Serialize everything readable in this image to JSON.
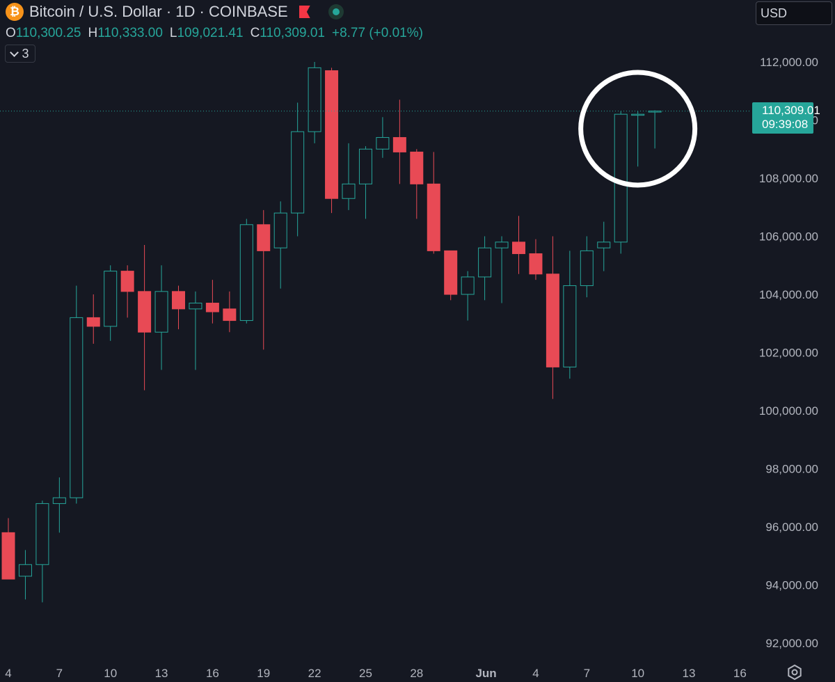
{
  "header": {
    "logo_letter": "₿",
    "title": "Bitcoin / U.S. Dollar · 1D · COINBASE",
    "flag_icon": "flag-icon",
    "status_icon": "market-open-dot-icon"
  },
  "ohlc": {
    "o_label": "O",
    "o_value": "110,300.25",
    "h_label": "H",
    "h_value": "110,333.00",
    "l_label": "L",
    "l_value": "109,021.41",
    "c_label": "C",
    "c_value": "110,309.01",
    "change": "+8.77 (+0.01%)"
  },
  "indicators_toggle": {
    "icon": "chevron-down-icon",
    "count": "3"
  },
  "currency": {
    "label": "USD"
  },
  "price_tag": {
    "price": "110,309.01",
    "countdown": "09:39:08"
  },
  "colors": {
    "background": "#151822",
    "up": "#26a69a",
    "down": "#e84a55",
    "text": "#d1d4dc",
    "axis_text": "#b2b5be"
  },
  "chart_data": {
    "type": "candlestick",
    "ylim": [
      91000,
      113000
    ],
    "yticks": [
      {
        "value": 92000,
        "label": "92,000.00"
      },
      {
        "value": 94000,
        "label": "94,000.00"
      },
      {
        "value": 96000,
        "label": "96,000.00"
      },
      {
        "value": 98000,
        "label": "98,000.00"
      },
      {
        "value": 100000,
        "label": "100,000.00"
      },
      {
        "value": 102000,
        "label": "102,000.00"
      },
      {
        "value": 104000,
        "label": "104,000.00"
      },
      {
        "value": 106000,
        "label": "106,000.00"
      },
      {
        "value": 108000,
        "label": "108,000.00"
      },
      {
        "value": 110000,
        "label": "110,000.00"
      },
      {
        "value": 112000,
        "label": "112,000.00"
      }
    ],
    "xticks": [
      {
        "index": 0,
        "label": "4"
      },
      {
        "index": 3,
        "label": "7"
      },
      {
        "index": 6,
        "label": "10"
      },
      {
        "index": 9,
        "label": "13"
      },
      {
        "index": 12,
        "label": "16"
      },
      {
        "index": 15,
        "label": "19"
      },
      {
        "index": 18,
        "label": "22"
      },
      {
        "index": 21,
        "label": "25"
      },
      {
        "index": 24,
        "label": "28"
      },
      {
        "index": 28,
        "label": "Jun"
      },
      {
        "index": 31,
        "label": "4"
      },
      {
        "index": 34,
        "label": "7"
      },
      {
        "index": 37,
        "label": "10"
      },
      {
        "index": 40,
        "label": "13"
      },
      {
        "index": 43,
        "label": "16"
      }
    ],
    "candles": [
      {
        "o": 95800,
        "h": 96300,
        "l": 94200,
        "c": 94200
      },
      {
        "o": 94300,
        "h": 95200,
        "l": 93500,
        "c": 94700
      },
      {
        "o": 94700,
        "h": 96900,
        "l": 93400,
        "c": 96800
      },
      {
        "o": 96800,
        "h": 97700,
        "l": 95800,
        "c": 97000
      },
      {
        "o": 97000,
        "h": 104300,
        "l": 96800,
        "c": 103200
      },
      {
        "o": 103200,
        "h": 104000,
        "l": 102300,
        "c": 102900
      },
      {
        "o": 102900,
        "h": 105000,
        "l": 102400,
        "c": 104800
      },
      {
        "o": 104800,
        "h": 105000,
        "l": 103200,
        "c": 104100
      },
      {
        "o": 104100,
        "h": 105700,
        "l": 100700,
        "c": 102700
      },
      {
        "o": 102700,
        "h": 105000,
        "l": 101400,
        "c": 104100
      },
      {
        "o": 104100,
        "h": 104300,
        "l": 102800,
        "c": 103500
      },
      {
        "o": 103500,
        "h": 104100,
        "l": 101400,
        "c": 103700
      },
      {
        "o": 103700,
        "h": 104500,
        "l": 103000,
        "c": 103400
      },
      {
        "o": 103500,
        "h": 104100,
        "l": 102700,
        "c": 103100
      },
      {
        "o": 103100,
        "h": 106600,
        "l": 103000,
        "c": 106400
      },
      {
        "o": 106400,
        "h": 106900,
        "l": 102100,
        "c": 105500
      },
      {
        "o": 105600,
        "h": 107200,
        "l": 104200,
        "c": 106800
      },
      {
        "o": 106800,
        "h": 110600,
        "l": 106000,
        "c": 109600
      },
      {
        "o": 109600,
        "h": 112000,
        "l": 109200,
        "c": 111800
      },
      {
        "o": 111700,
        "h": 111800,
        "l": 106800,
        "c": 107300
      },
      {
        "o": 107300,
        "h": 109200,
        "l": 106900,
        "c": 107800
      },
      {
        "o": 107800,
        "h": 109100,
        "l": 106600,
        "c": 109000
      },
      {
        "o": 109000,
        "h": 110100,
        "l": 108700,
        "c": 109400
      },
      {
        "o": 109400,
        "h": 110700,
        "l": 107800,
        "c": 108900
      },
      {
        "o": 108900,
        "h": 109000,
        "l": 106600,
        "c": 107800
      },
      {
        "o": 107800,
        "h": 108900,
        "l": 105400,
        "c": 105500
      },
      {
        "o": 105500,
        "h": 105500,
        "l": 103800,
        "c": 104000
      },
      {
        "o": 104000,
        "h": 104800,
        "l": 103100,
        "c": 104600
      },
      {
        "o": 104600,
        "h": 106000,
        "l": 103800,
        "c": 105600
      },
      {
        "o": 105600,
        "h": 106000,
        "l": 103700,
        "c": 105800
      },
      {
        "o": 105800,
        "h": 106700,
        "l": 104700,
        "c": 105400
      },
      {
        "o": 105400,
        "h": 105900,
        "l": 104500,
        "c": 104700
      },
      {
        "o": 104700,
        "h": 106000,
        "l": 100400,
        "c": 101500
      },
      {
        "o": 101500,
        "h": 105500,
        "l": 101100,
        "c": 104300
      },
      {
        "o": 104300,
        "h": 106000,
        "l": 103900,
        "c": 105500
      },
      {
        "o": 105600,
        "h": 106500,
        "l": 104800,
        "c": 105800
      },
      {
        "o": 105800,
        "h": 110300,
        "l": 105400,
        "c": 110200
      },
      {
        "o": 110200,
        "h": 110300,
        "l": 108400,
        "c": 110200
      },
      {
        "o": 110300,
        "h": 110333,
        "l": 109021,
        "c": 110309
      }
    ],
    "last_price": 110309.01,
    "highlight": {
      "shape": "circle",
      "around_candles": [
        36,
        38
      ]
    }
  }
}
